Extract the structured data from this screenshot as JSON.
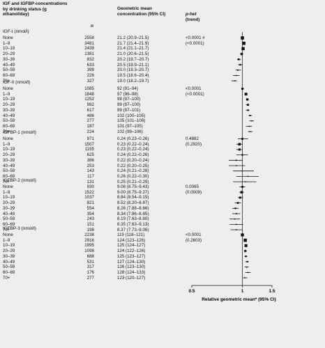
{
  "header": {
    "col1": "IGF and IGFBP concentrations by drinking status (g ethanol/day)",
    "col_n": "n",
    "col_gm": "Geometric mean concentration (95% CI)",
    "col_p_het": "p-het",
    "col_trend": "(trend)"
  },
  "chart_data": {
    "type": "forest",
    "xlabel": "Relative geometric mean* (95% CI)",
    "xscale": "log",
    "xlim": [
      0.5,
      1.5
    ],
    "xticks": [
      "0.5",
      "1",
      "1.5"
    ],
    "reference_line": 1,
    "sections": [
      {
        "title": "IGF-I (nmol/l)",
        "p_het": "<0.0001 #",
        "p_trend": "(<0.0001)",
        "rows": [
          {
            "label": "None",
            "n": "2558",
            "ci_text": "21.2 (20.9–21.5)",
            "rel": 1.0,
            "lo": 0.99,
            "hi": 1.01
          },
          {
            "label": "1–9",
            "n": "3481",
            "ci_text": "21.7 (21.4–21.9)",
            "rel": 1.02,
            "lo": 1.01,
            "hi": 1.03
          },
          {
            "label": "10–19",
            "n": "2439",
            "ci_text": "21.4 (21.1–21.7)",
            "rel": 1.01,
            "lo": 1.0,
            "hi": 1.02
          },
          {
            "label": "20–29",
            "n": "1381",
            "ci_text": "21.0 (20.6–21.5)",
            "rel": 0.99,
            "lo": 0.97,
            "hi": 1.01
          },
          {
            "label": "30–39",
            "n": "832",
            "ci_text": "20.2 (19.7–20.7)",
            "rel": 0.95,
            "lo": 0.93,
            "hi": 0.98
          },
          {
            "label": "40–49",
            "n": "633",
            "ci_text": "20.5 (19.9–21.1)",
            "rel": 0.97,
            "lo": 0.94,
            "hi": 1.0
          },
          {
            "label": "50–59",
            "n": "399",
            "ci_text": "20.0 (19.3–20.7)",
            "rel": 0.94,
            "lo": 0.91,
            "hi": 0.98
          },
          {
            "label": "60–69",
            "n": "226",
            "ci_text": "19.5 (18.6–20.4)",
            "rel": 0.92,
            "lo": 0.88,
            "hi": 0.96
          },
          {
            "label": "70+",
            "n": "327",
            "ci_text": "19.0 (18.2–19.7)",
            "rel": 0.9,
            "lo": 0.86,
            "hi": 0.93
          }
        ]
      },
      {
        "title": "IGF-II (nmol/l)",
        "p_het": "<0.0001",
        "p_trend": "(<0.0001)",
        "rows": [
          {
            "label": "None",
            "n": "1085",
            "ci_text": "92 (91–94)",
            "rel": 1.0,
            "lo": 0.99,
            "hi": 1.02
          },
          {
            "label": "1–9",
            "n": "1848",
            "ci_text": "97 (96–98)",
            "rel": 1.05,
            "lo": 1.04,
            "hi": 1.07
          },
          {
            "label": "10–19",
            "n": "1252",
            "ci_text": "98 (97–100)",
            "rel": 1.07,
            "lo": 1.05,
            "hi": 1.09
          },
          {
            "label": "20–29",
            "n": "982",
            "ci_text": "99 (97–100)",
            "rel": 1.08,
            "lo": 1.05,
            "hi": 1.09
          },
          {
            "label": "30–39",
            "n": "617",
            "ci_text": "99 (97–101)",
            "rel": 1.08,
            "lo": 1.05,
            "hi": 1.1
          },
          {
            "label": "40–49",
            "n": "486",
            "ci_text": "102 (100–105)",
            "rel": 1.11,
            "lo": 1.09,
            "hi": 1.14
          },
          {
            "label": "50–59",
            "n": "277",
            "ci_text": "105 (101–108)",
            "rel": 1.14,
            "lo": 1.1,
            "hi": 1.17
          },
          {
            "label": "60–69",
            "n": "187",
            "ci_text": "101 (97–105)",
            "rel": 1.1,
            "lo": 1.05,
            "hi": 1.14
          },
          {
            "label": "70+",
            "n": "224",
            "ci_text": "102 (99–106)",
            "rel": 1.11,
            "lo": 1.08,
            "hi": 1.15
          }
        ]
      },
      {
        "title": "IGFBP-1 (nmol/l)",
        "p_het": "0.4882",
        "p_trend": "(0.2920)",
        "rows": [
          {
            "label": "None",
            "n": "971",
            "ci_text": "0.24 (0.23–0.26)",
            "rel": 1.0,
            "lo": 0.94,
            "hi": 1.08
          },
          {
            "label": "1–9",
            "n": "1507",
            "ci_text": "0.23 (0.22–0.24)",
            "rel": 0.96,
            "lo": 0.92,
            "hi": 1.0
          },
          {
            "label": "10–19",
            "n": "1155",
            "ci_text": "0.23 (0.22–0.24)",
            "rel": 0.96,
            "lo": 0.92,
            "hi": 1.0
          },
          {
            "label": "20–29",
            "n": "625",
            "ci_text": "0.24 (0.22–0.26)",
            "rel": 1.0,
            "lo": 0.92,
            "hi": 1.08
          },
          {
            "label": "30–39",
            "n": "386",
            "ci_text": "0.22 (0.20–0.24)",
            "rel": 0.92,
            "lo": 0.83,
            "hi": 1.0
          },
          {
            "label": "40–49",
            "n": "253",
            "ci_text": "0.22 (0.20–0.25)",
            "rel": 0.92,
            "lo": 0.83,
            "hi": 1.04
          },
          {
            "label": "50–59",
            "n": "143",
            "ci_text": "0.24 (0.21–0.28)",
            "rel": 1.0,
            "lo": 0.88,
            "hi": 1.17
          },
          {
            "label": "60–69",
            "n": "117",
            "ci_text": "0.26 (0.22–0.30)",
            "rel": 1.08,
            "lo": 0.92,
            "hi": 1.25
          },
          {
            "label": "70+",
            "n": "131",
            "ci_text": "0.25 (0.21–0.29)",
            "rel": 1.04,
            "lo": 0.88,
            "hi": 1.21
          }
        ]
      },
      {
        "title": "IGFBP-2 (nmol/l)",
        "p_het": "0.0065",
        "p_trend": "(0.0009)",
        "rows": [
          {
            "label": "None",
            "n": "930",
            "ci_text": "9.08 (8.75–9.43)",
            "rel": 1.0,
            "lo": 0.96,
            "hi": 1.04
          },
          {
            "label": "1–9",
            "n": "1522",
            "ci_text": "9.00 (8.75–9.27)",
            "rel": 0.99,
            "lo": 0.96,
            "hi": 1.02
          },
          {
            "label": "10–19",
            "n": "1037",
            "ci_text": "8.84 (8.54–9.15)",
            "rel": 0.97,
            "lo": 0.94,
            "hi": 1.01
          },
          {
            "label": "20–29",
            "n": "821",
            "ci_text": "8.52 (8.20–8.87)",
            "rel": 0.94,
            "lo": 0.9,
            "hi": 0.98
          },
          {
            "label": "30–39",
            "n": "554",
            "ci_text": "8.26 (7.88–8.66)",
            "rel": 0.91,
            "lo": 0.87,
            "hi": 0.95
          },
          {
            "label": "40–49",
            "n": "354",
            "ci_text": "8.34 (7.86–8.85)",
            "rel": 0.92,
            "lo": 0.87,
            "hi": 0.97
          },
          {
            "label": "50–59",
            "n": "243",
            "ci_text": "8.19 (7.63–8.80)",
            "rel": 0.9,
            "lo": 0.84,
            "hi": 0.97
          },
          {
            "label": "60–69",
            "n": "151",
            "ci_text": "8.35 (7.63–9.13)",
            "rel": 0.92,
            "lo": 0.84,
            "hi": 1.01
          },
          {
            "label": "70+",
            "n": "198",
            "ci_text": "8.37 (7.73–9.06)",
            "rel": 0.92,
            "lo": 0.85,
            "hi": 1.0
          }
        ]
      },
      {
        "title": "IGFBP-3 (nmol/l)",
        "p_het": "<0.0001",
        "p_trend": "(0.2603)",
        "rows": [
          {
            "label": "None",
            "n": "2238",
            "ci_text": "119 (118–121)",
            "rel": 1.0,
            "lo": 0.99,
            "hi": 1.02
          },
          {
            "label": "1–9",
            "n": "2916",
            "ci_text": "124 (123–126)",
            "rel": 1.04,
            "lo": 1.03,
            "hi": 1.06
          },
          {
            "label": "10–19",
            "n": "1995",
            "ci_text": "125 (124–127)",
            "rel": 1.05,
            "lo": 1.04,
            "hi": 1.07
          },
          {
            "label": "20–29",
            "n": "1098",
            "ci_text": "124 (122–126)",
            "rel": 1.04,
            "lo": 1.03,
            "hi": 1.06
          },
          {
            "label": "30–39",
            "n": "688",
            "ci_text": "125 (123–127)",
            "rel": 1.05,
            "lo": 1.03,
            "hi": 1.07
          },
          {
            "label": "40–49",
            "n": "531",
            "ci_text": "127 (124–130)",
            "rel": 1.07,
            "lo": 1.04,
            "hi": 1.09
          },
          {
            "label": "50–59",
            "n": "317",
            "ci_text": "126 (123–130)",
            "rel": 1.06,
            "lo": 1.03,
            "hi": 1.09
          },
          {
            "label": "60–69",
            "n": "176",
            "ci_text": "128 (124–133)",
            "rel": 1.08,
            "lo": 1.04,
            "hi": 1.12
          },
          {
            "label": "70+",
            "n": "277",
            "ci_text": "123 (120–127)",
            "rel": 1.03,
            "lo": 1.01,
            "hi": 1.07
          }
        ]
      }
    ]
  }
}
